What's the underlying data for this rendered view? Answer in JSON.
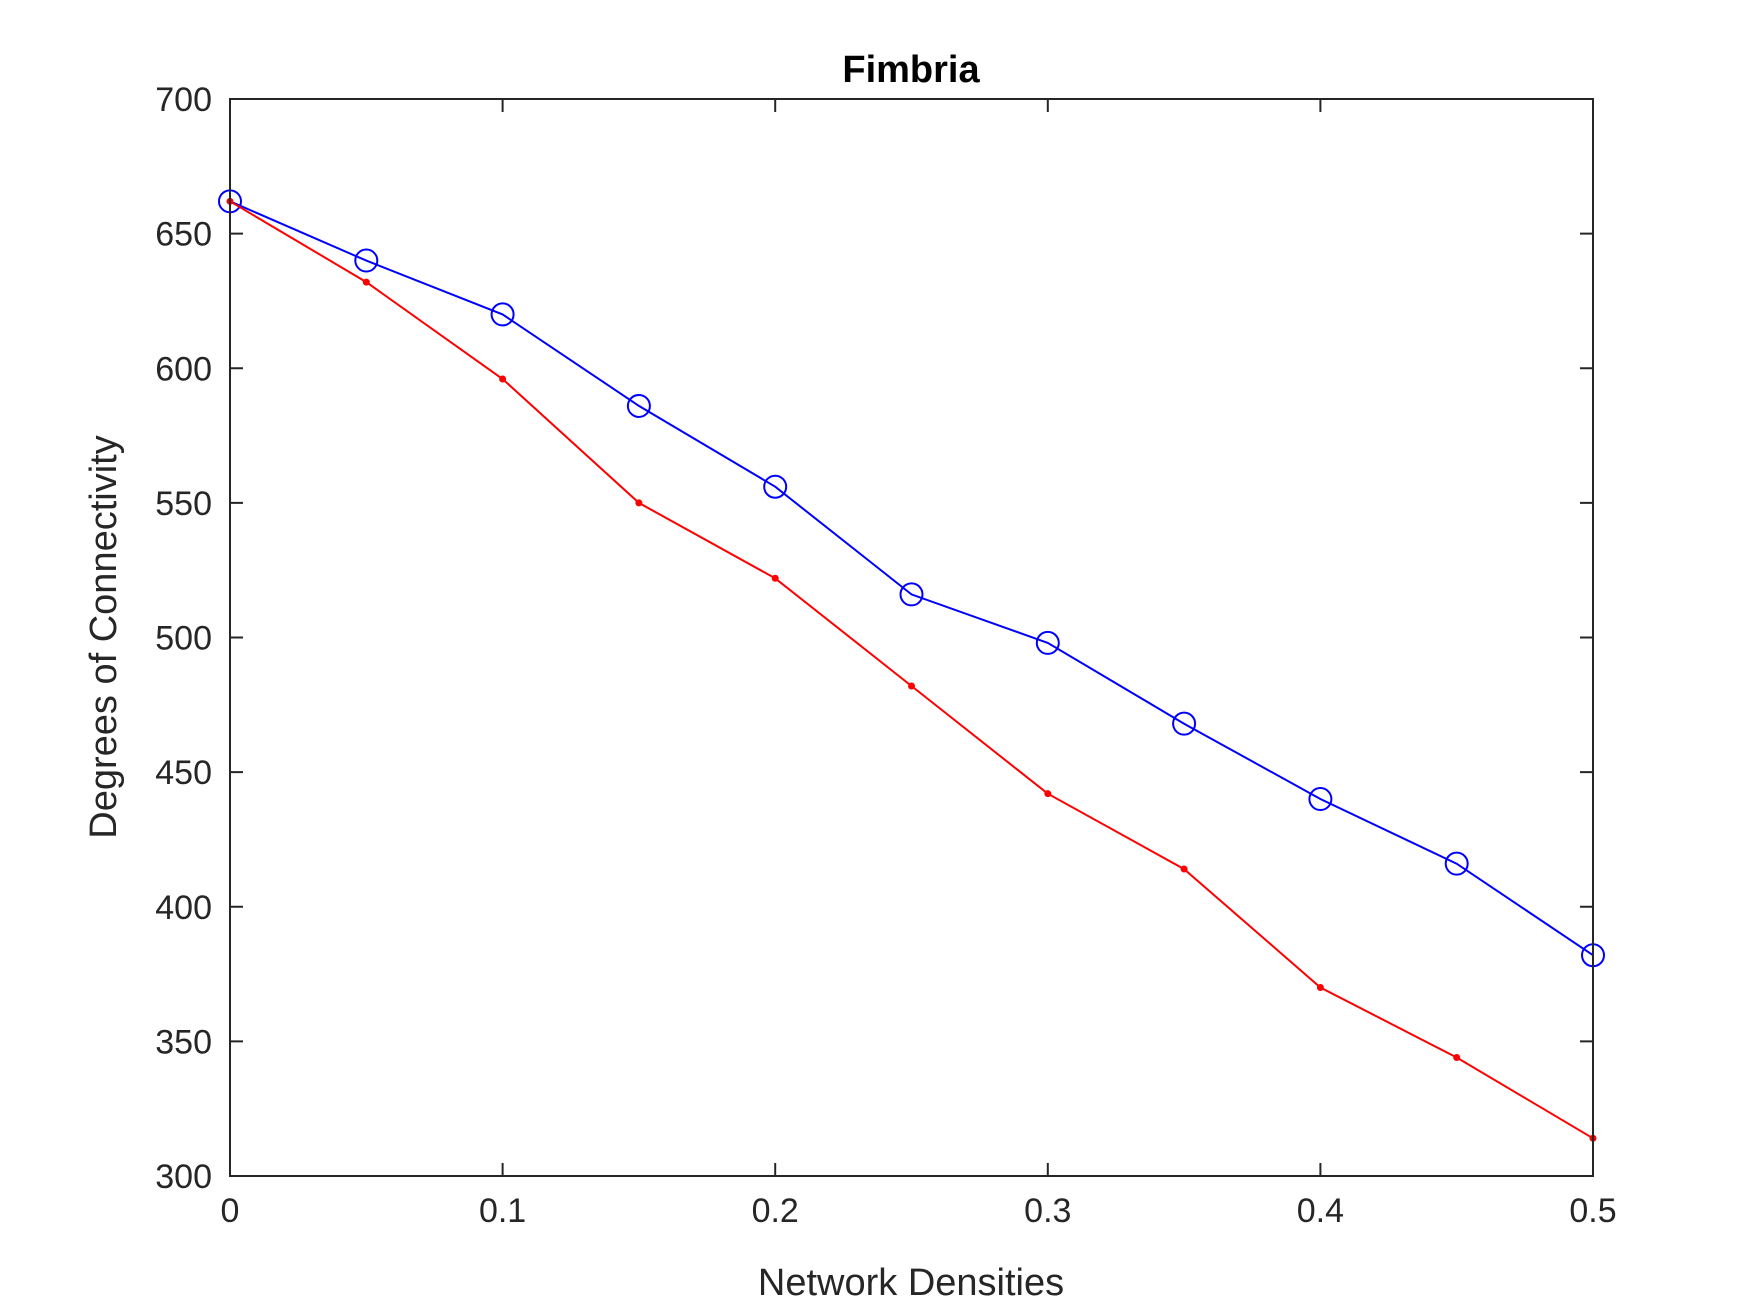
{
  "chart_data": {
    "type": "line",
    "title": "Fimbria",
    "xlabel": "Network Densities",
    "ylabel": "Degrees of Connectivity",
    "xlim": [
      0,
      0.5
    ],
    "ylim": [
      300,
      700
    ],
    "xticks": [
      0,
      0.1,
      0.2,
      0.3,
      0.4,
      0.5
    ],
    "xtick_labels": [
      "0",
      "0.1",
      "0.2",
      "0.3",
      "0.4",
      "0.5"
    ],
    "yticks": [
      300,
      350,
      400,
      450,
      500,
      550,
      600,
      650,
      700
    ],
    "ytick_labels": [
      "300",
      "350",
      "400",
      "450",
      "500",
      "550",
      "600",
      "650",
      "700"
    ],
    "grid": false,
    "x": [
      0,
      0.05,
      0.1,
      0.15,
      0.2,
      0.25,
      0.3,
      0.35,
      0.4,
      0.45,
      0.5
    ],
    "series": [
      {
        "color": "#0000ff",
        "marker": "circle",
        "values": [
          662,
          640,
          620,
          586,
          556,
          516,
          498,
          468,
          440,
          416,
          382
        ]
      },
      {
        "color": "#ff0000",
        "marker": "dot",
        "values": [
          662,
          632,
          596,
          550,
          522,
          482,
          442,
          414,
          370,
          344,
          314
        ]
      }
    ]
  }
}
